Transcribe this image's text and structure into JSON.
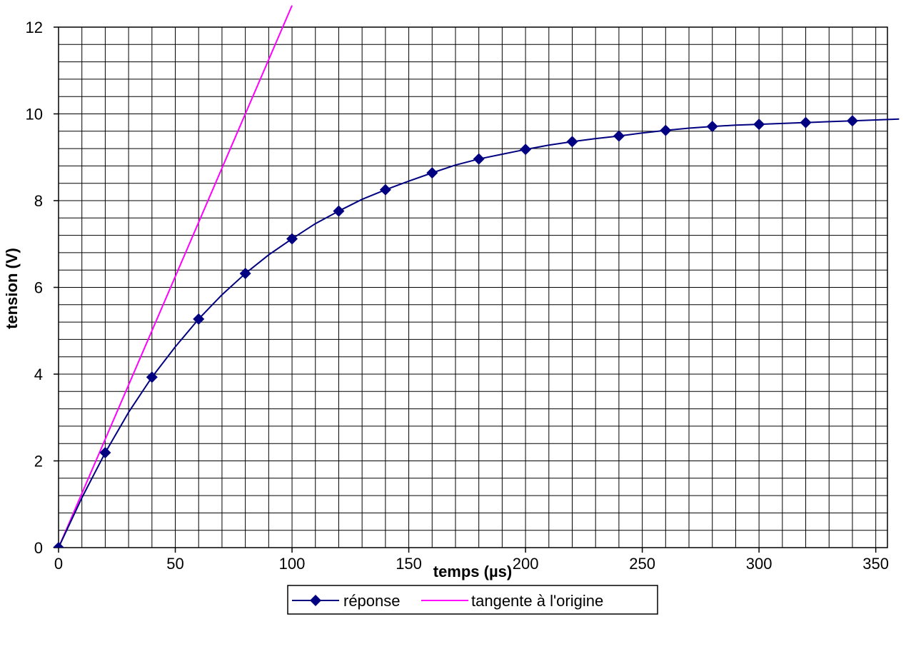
{
  "chart_data": {
    "type": "line",
    "xlabel": "temps (µs)",
    "ylabel": "tension (V)",
    "xlim": [
      0,
      355
    ],
    "ylim": [
      0,
      12
    ],
    "x_ticks": [
      0,
      50,
      100,
      150,
      200,
      250,
      300,
      350
    ],
    "y_ticks": [
      0,
      2,
      4,
      6,
      8,
      10,
      12
    ],
    "x_minor_step": 10,
    "y_minor_step": 0.4,
    "grid": true,
    "legend_position": "bottom",
    "series": [
      {
        "name": "réponse",
        "color": "#000080",
        "marker": "diamond",
        "x": [
          0,
          20,
          40,
          60,
          80,
          100,
          120,
          140,
          160,
          180,
          200,
          220,
          240,
          260,
          280,
          300,
          320,
          340
        ],
        "y": [
          0,
          2.19,
          3.93,
          5.27,
          6.32,
          7.12,
          7.76,
          8.25,
          8.64,
          8.96,
          9.18,
          9.36,
          9.49,
          9.62,
          9.71,
          9.76,
          9.8,
          9.84
        ],
        "curve_x": [
          0,
          10,
          20,
          30,
          40,
          50,
          60,
          70,
          80,
          90,
          100,
          110,
          120,
          130,
          140,
          150,
          160,
          170,
          180,
          190,
          200,
          210,
          220,
          230,
          240,
          250,
          260,
          270,
          280,
          290,
          300,
          310,
          320,
          330,
          340,
          350,
          360
        ],
        "curve_y": [
          0,
          1.15,
          2.19,
          3.12,
          3.93,
          4.63,
          5.27,
          5.83,
          6.32,
          6.75,
          7.12,
          7.47,
          7.76,
          8.03,
          8.25,
          8.45,
          8.64,
          8.82,
          8.96,
          9.07,
          9.18,
          9.28,
          9.36,
          9.43,
          9.49,
          9.56,
          9.62,
          9.67,
          9.71,
          9.74,
          9.76,
          9.78,
          9.8,
          9.82,
          9.84,
          9.86,
          9.88
        ]
      },
      {
        "name": "tangente à l'origine",
        "color": "#ff00ff",
        "marker": "none",
        "x": [
          0,
          100
        ],
        "y": [
          0,
          12.5
        ]
      }
    ]
  }
}
